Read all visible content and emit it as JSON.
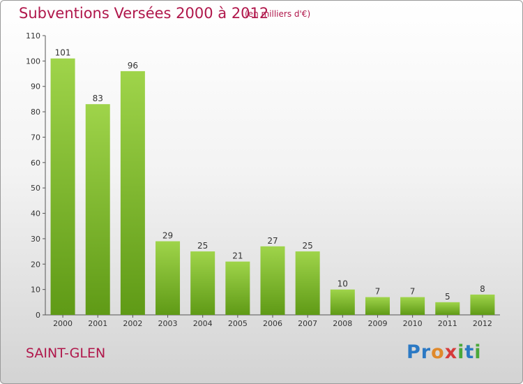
{
  "header": {
    "title": "Subventions Versées 2000 à 2012",
    "unit": "(en milliers d'€)"
  },
  "commune": "SAINT-GLEN",
  "logo": "Proxiti",
  "colors": {
    "title": "#b0174b",
    "bar_top": "#9fd44a",
    "bar_bottom": "#5f9a16"
  },
  "chart_data": {
    "type": "bar",
    "title": "Subventions Versées 2000 à 2012",
    "categories": [
      "2000",
      "2001",
      "2002",
      "2003",
      "2004",
      "2005",
      "2006",
      "2007",
      "2008",
      "2009",
      "2010",
      "2011",
      "2012"
    ],
    "values": [
      101,
      83,
      96,
      29,
      25,
      21,
      27,
      25,
      10,
      7,
      7,
      5,
      8
    ],
    "ylim": [
      0,
      110
    ],
    "yticks": [
      0,
      10,
      20,
      30,
      40,
      50,
      60,
      70,
      80,
      90,
      100,
      110
    ],
    "grid": false,
    "data_labels": true
  }
}
